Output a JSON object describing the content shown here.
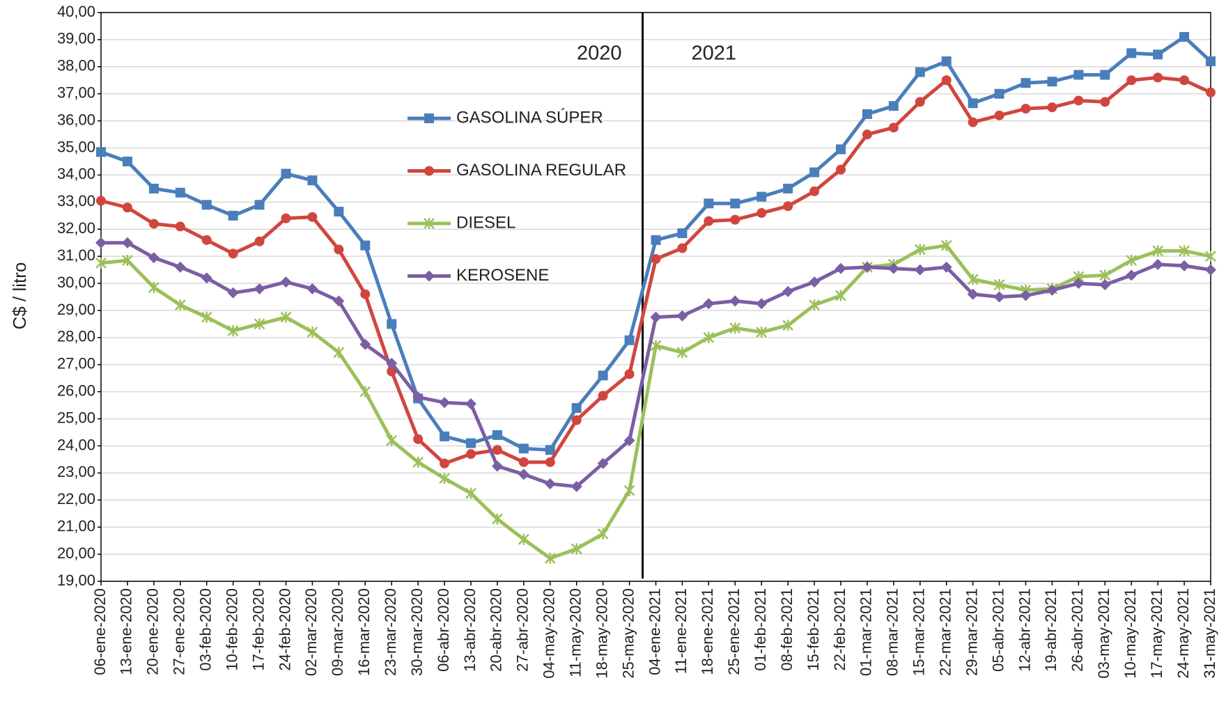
{
  "chart_data": {
    "type": "line",
    "y_label": "C$ / litro",
    "annotations": [
      "2020",
      "2021"
    ],
    "categories": [
      "06-ene-2020",
      "13-ene-2020",
      "20-ene-2020",
      "27-ene-2020",
      "03-feb-2020",
      "10-feb-2020",
      "17-feb-2020",
      "24-feb-2020",
      "02-mar-2020",
      "09-mar-2020",
      "16-mar-2020",
      "23-mar-2020",
      "30-mar-2020",
      "06-abr-2020",
      "13-abr-2020",
      "20-abr-2020",
      "27-abr-2020",
      "04-may-2020",
      "11-may-2020",
      "18-may-2020",
      "25-may-2020",
      "04-ene-2021",
      "11-ene-2021",
      "18-ene-2021",
      "25-ene-2021",
      "01-feb-2021",
      "08-feb-2021",
      "15-feb-2021",
      "22-feb-2021",
      "01-mar-2021",
      "08-mar-2021",
      "15-mar-2021",
      "22-mar-2021",
      "29-mar-2021",
      "05-abr-2021",
      "12-abr-2021",
      "19-abr-2021",
      "26-abr-2021",
      "03-may-2021",
      "10-may-2021",
      "17-may-2021",
      "24-may-2021",
      "31-may-2021"
    ],
    "series": [
      {
        "name": "GASOLINA SÚPER",
        "color": "#4a7ebb",
        "marker": "square",
        "values": [
          34.85,
          34.5,
          33.5,
          33.35,
          32.9,
          32.5,
          32.9,
          34.05,
          33.8,
          32.65,
          31.4,
          28.5,
          25.75,
          24.35,
          24.1,
          24.4,
          23.9,
          23.85,
          25.4,
          26.6,
          27.9,
          31.6,
          31.85,
          32.95,
          32.95,
          33.2,
          33.5,
          34.1,
          34.95,
          36.25,
          36.55,
          37.8,
          38.2,
          36.65,
          37.0,
          37.4,
          37.45,
          37.7,
          37.7,
          38.5,
          38.45,
          39.1,
          38.2
        ]
      },
      {
        "name": "GASOLINA REGULAR",
        "color": "#d0463f",
        "marker": "circle",
        "values": [
          33.05,
          32.8,
          32.2,
          32.1,
          31.6,
          31.1,
          31.55,
          32.4,
          32.45,
          31.25,
          29.6,
          26.75,
          24.25,
          23.35,
          23.7,
          23.85,
          23.4,
          23.4,
          24.95,
          25.85,
          26.65,
          30.9,
          31.3,
          32.3,
          32.35,
          32.6,
          32.85,
          33.4,
          34.2,
          35.5,
          35.75,
          36.7,
          37.5,
          35.95,
          36.2,
          36.45,
          36.5,
          36.75,
          36.7,
          37.5,
          37.6,
          37.5,
          37.05
        ]
      },
      {
        "name": "DIESEL",
        "color": "#9bc05a",
        "marker": "cross",
        "values": [
          30.75,
          30.85,
          29.85,
          29.2,
          28.75,
          28.25,
          28.5,
          28.75,
          28.2,
          27.45,
          26.0,
          24.2,
          23.4,
          22.8,
          22.25,
          21.3,
          20.55,
          19.85,
          20.2,
          20.75,
          22.35,
          27.7,
          27.45,
          28.0,
          28.35,
          28.2,
          28.45,
          29.2,
          29.55,
          30.6,
          30.7,
          31.25,
          31.4,
          30.15,
          29.95,
          29.75,
          29.8,
          30.25,
          30.3,
          30.85,
          31.2,
          31.2,
          31.0
        ]
      },
      {
        "name": "KEROSENE",
        "color": "#7b5ea3",
        "marker": "diamond",
        "values": [
          31.5,
          31.5,
          30.95,
          30.6,
          30.2,
          29.65,
          29.8,
          30.05,
          29.8,
          29.35,
          27.75,
          27.05,
          25.8,
          25.6,
          25.55,
          23.25,
          22.95,
          22.6,
          22.5,
          23.35,
          24.2,
          28.75,
          28.8,
          29.25,
          29.35,
          29.25,
          29.7,
          30.05,
          30.55,
          30.6,
          30.55,
          30.5,
          30.6,
          29.6,
          29.5,
          29.55,
          29.75,
          30.0,
          29.95,
          30.3,
          30.7,
          30.65,
          30.5
        ]
      }
    ],
    "ylim": [
      19,
      40
    ],
    "yticks": [
      {
        "value": 19,
        "label": "19,00"
      },
      {
        "value": 20,
        "label": "20,00"
      },
      {
        "value": 21,
        "label": "21,00"
      },
      {
        "value": 22,
        "label": "22,00"
      },
      {
        "value": 23,
        "label": "23,00"
      },
      {
        "value": 24,
        "label": "24,00"
      },
      {
        "value": 25,
        "label": "25,00"
      },
      {
        "value": 26,
        "label": "26,00"
      },
      {
        "value": 27,
        "label": "27,00"
      },
      {
        "value": 28,
        "label": "28,00"
      },
      {
        "value": 29,
        "label": "29,00"
      },
      {
        "value": 30,
        "label": "30,00"
      },
      {
        "value": 31,
        "label": "31,00"
      },
      {
        "value": 32,
        "label": "32,00"
      },
      {
        "value": 33,
        "label": "33,00"
      },
      {
        "value": 34,
        "label": "34,00"
      },
      {
        "value": 35,
        "label": "35,00"
      },
      {
        "value": 36,
        "label": "36,00"
      },
      {
        "value": 37,
        "label": "37,00"
      },
      {
        "value": 38,
        "label": "38,00"
      },
      {
        "value": 39,
        "label": "39,00"
      },
      {
        "value": 40,
        "label": "40,00"
      }
    ],
    "grid": true
  }
}
